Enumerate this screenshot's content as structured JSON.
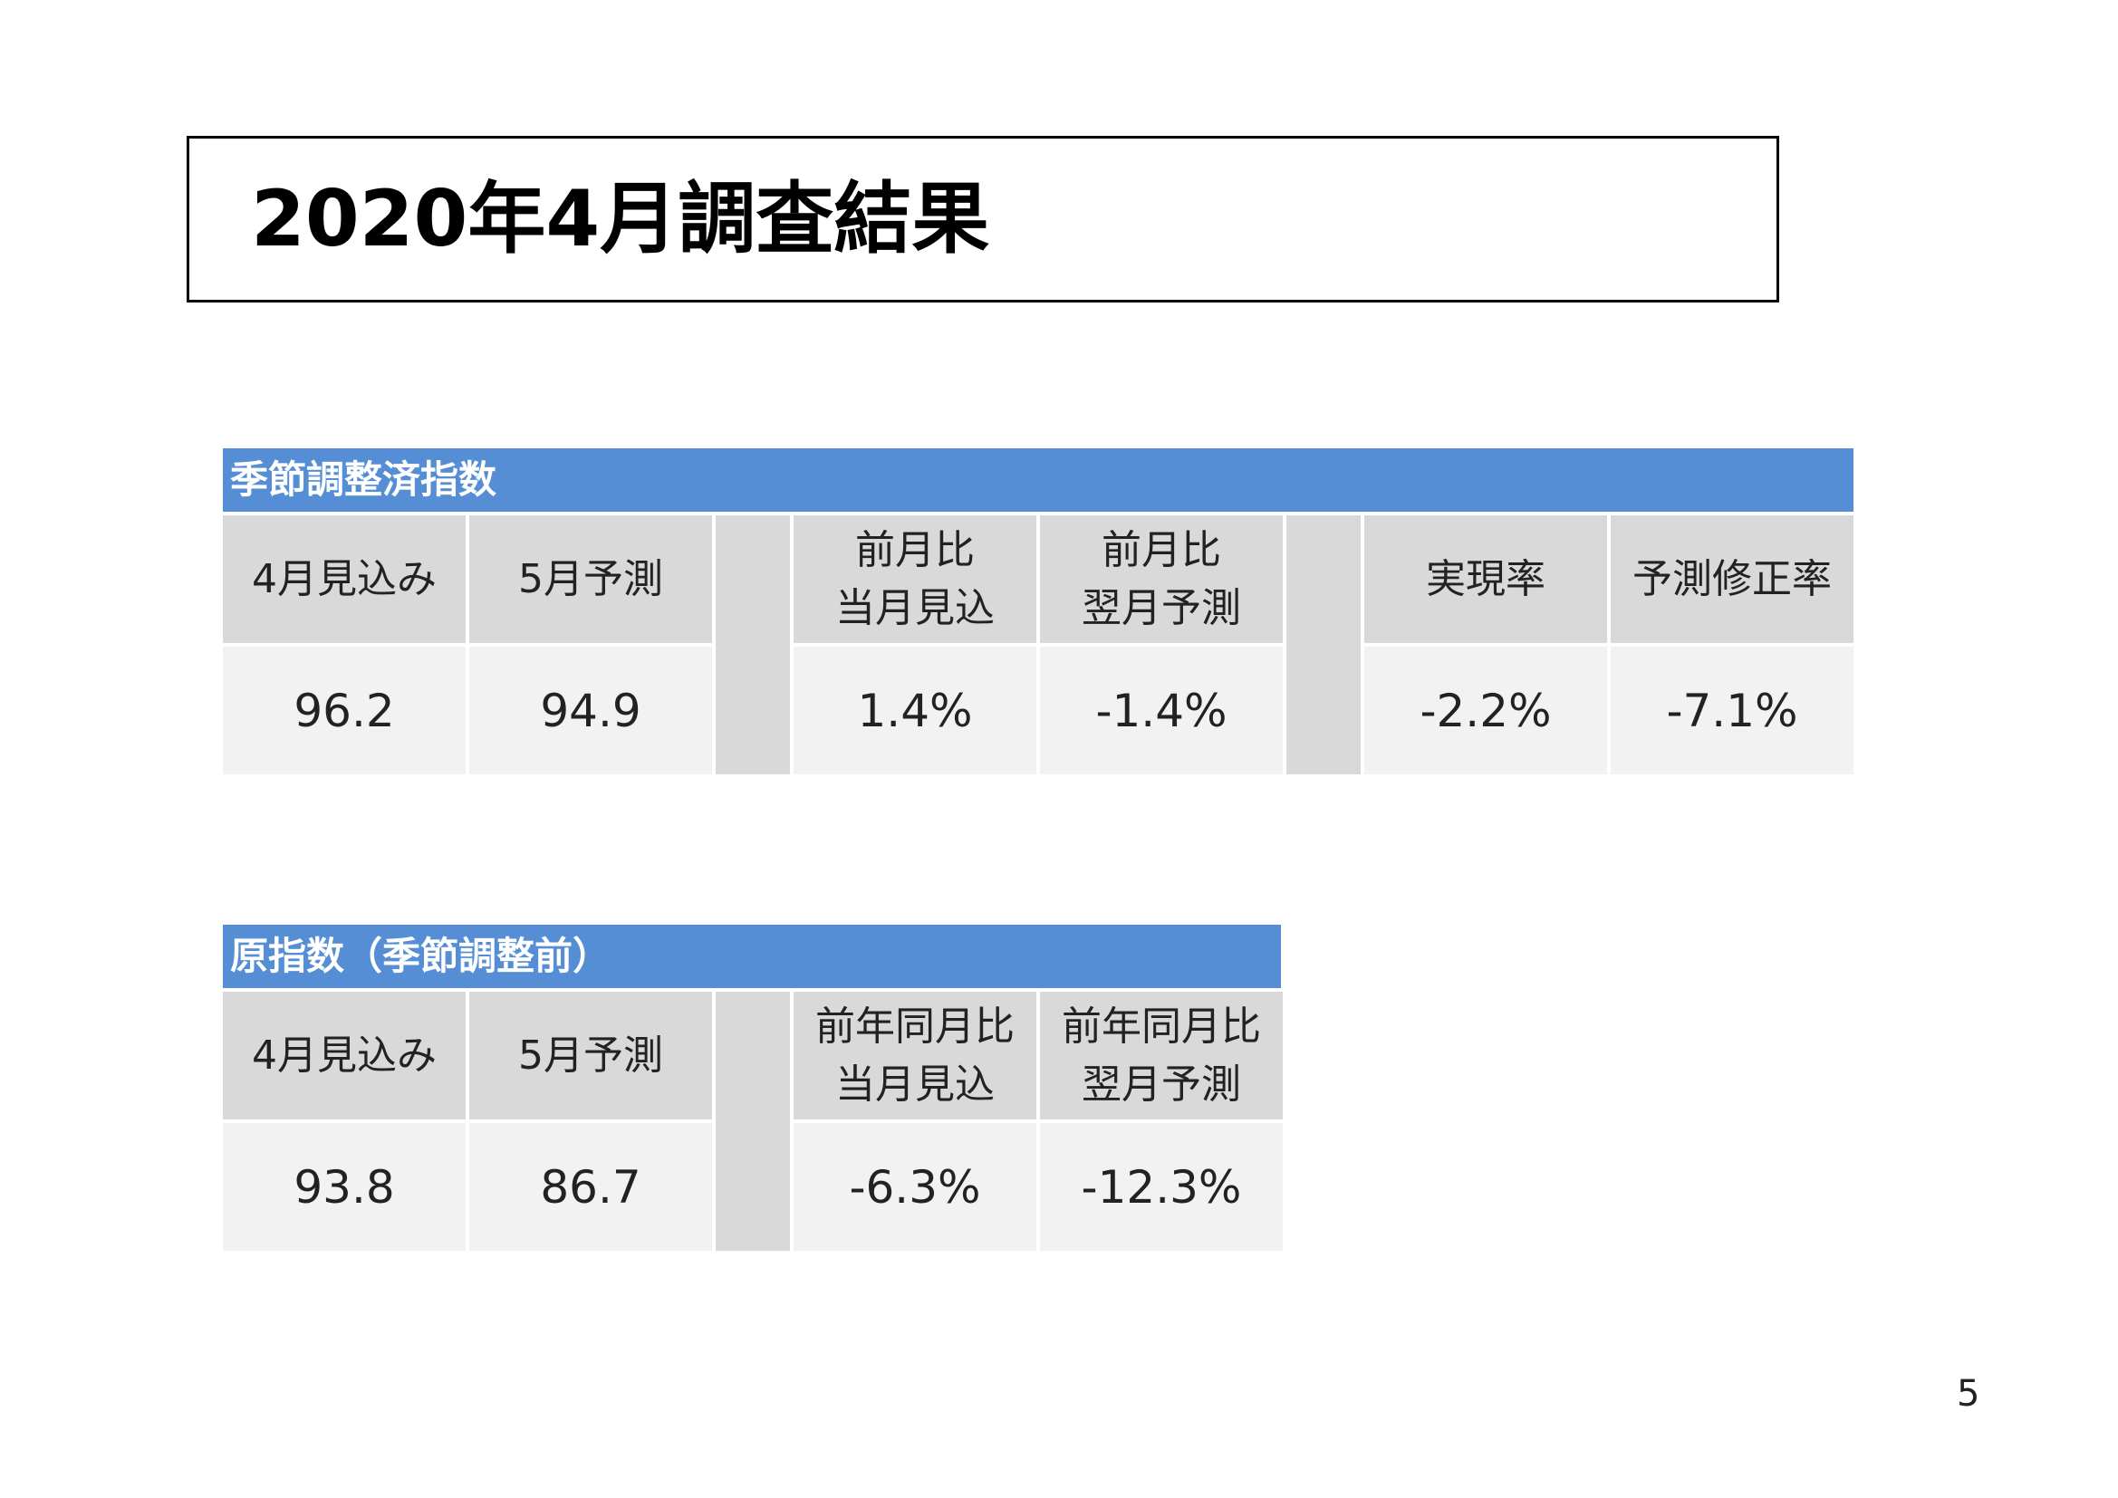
{
  "title": "2020年4月調査結果",
  "page_number": "5",
  "seasonal": {
    "header": "季節調整済指数",
    "columns": [
      {
        "label_line1": "4月見込み",
        "label_line2": "",
        "value": "96.2"
      },
      {
        "label_line1": "5月予測",
        "label_line2": "",
        "value": "94.9"
      },
      {
        "label_line1": "前月比",
        "label_line2": "当月見込",
        "value": "1.4%"
      },
      {
        "label_line1": "前月比",
        "label_line2": "翌月予測",
        "value": "-1.4%"
      },
      {
        "label_line1": "実現率",
        "label_line2": "",
        "value": "-2.2%"
      },
      {
        "label_line1": "予測修正率",
        "label_line2": "",
        "value": "-7.1%"
      }
    ]
  },
  "raw": {
    "header": "原指数（季節調整前）",
    "columns": [
      {
        "label_line1": "4月見込み",
        "label_line2": "",
        "value": "93.8"
      },
      {
        "label_line1": "5月予測",
        "label_line2": "",
        "value": "86.7"
      },
      {
        "label_line1": "前年同月比",
        "label_line2": "当月見込",
        "value": "-6.3%"
      },
      {
        "label_line1": "前年同月比",
        "label_line2": "翌月予測",
        "value": "-12.3%"
      }
    ]
  }
}
